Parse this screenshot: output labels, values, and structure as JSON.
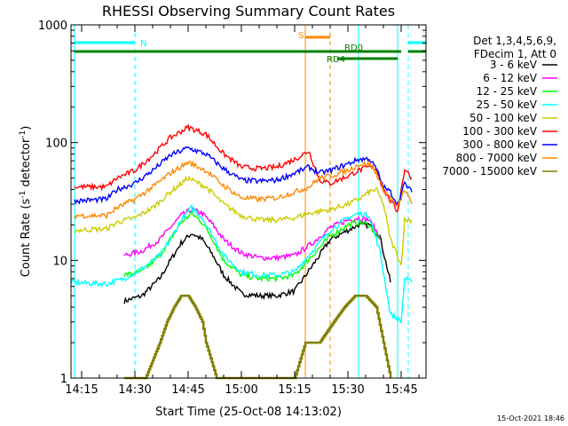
{
  "chart_data": {
    "type": "line",
    "title": "RHESSI Observing Summary Count Rates",
    "xlabel": "Start Time (25-Oct-08 14:13:02)",
    "ylabel": "Count Rate (s⁻¹ detector⁻¹)",
    "ylabel_parts": [
      "Count Rate (s",
      "-1",
      " detector",
      "-1",
      ")"
    ],
    "y_scale": "log",
    "ylim": [
      1,
      1000
    ],
    "xlim": [
      "14:12",
      "15:52"
    ],
    "x_ticks": [
      "14:15",
      "14:30",
      "14:45",
      "15:00",
      "15:15",
      "15:30",
      "15:45"
    ],
    "y_ticks": [
      {
        "value": 1,
        "label": "1"
      },
      {
        "value": 10,
        "label": "10"
      },
      {
        "value": 100,
        "label": "100"
      },
      {
        "value": 1000,
        "label": "1000"
      }
    ],
    "grid": false,
    "legend_placement": "top-right (outside plot)",
    "legend_header": [
      "Det 1,3,4,5,6,9,",
      "FDecim 1, Att 0"
    ],
    "timestamp": "15-Oct-2021 18:46",
    "series": [
      {
        "name": "3 - 6 keV",
        "color": "#000000",
        "x": [
          "14:27",
          "14:32",
          "14:37",
          "14:40",
          "14:43",
          "14:46",
          "14:49",
          "14:52",
          "14:55",
          "15:00",
          "15:05",
          "15:10",
          "15:15",
          "15:20",
          "15:25",
          "15:30",
          "15:33",
          "15:36",
          "15:39",
          "15:42"
        ],
        "values": [
          4.5,
          5,
          7,
          10,
          14,
          17,
          15,
          11,
          7.5,
          5.2,
          5,
          5,
          5.5,
          9,
          15,
          18,
          20,
          20,
          16,
          6.5
        ]
      },
      {
        "name": "6 - 12 keV",
        "color": "#ff00ff",
        "x": [
          "14:27",
          "14:32",
          "14:37",
          "14:40",
          "14:43",
          "14:46",
          "14:49",
          "14:52",
          "14:55",
          "15:00",
          "15:05",
          "15:10",
          "15:15",
          "15:20",
          "15:25",
          "15:30",
          "15:33",
          "15:36",
          "15:39"
        ],
        "values": [
          11,
          12,
          15,
          19,
          24,
          27,
          25,
          20,
          15,
          11.5,
          10.5,
          10.5,
          11,
          14,
          19,
          22,
          23,
          22,
          16
        ]
      },
      {
        "name": "12 - 25 keV",
        "color": "#00ff00",
        "x": [
          "14:27",
          "14:32",
          "14:37",
          "14:40",
          "14:43",
          "14:46",
          "14:49",
          "14:52",
          "14:55",
          "15:00",
          "15:05",
          "15:10",
          "15:15",
          "15:20",
          "15:25",
          "15:30",
          "15:33",
          "15:36",
          "15:39"
        ],
        "values": [
          7.5,
          8,
          11,
          15,
          21,
          25,
          21,
          15,
          10,
          7.5,
          7,
          7,
          7.5,
          11,
          16,
          20,
          21,
          20,
          15
        ]
      },
      {
        "name": "25 - 50 keV",
        "color": "#00ffff",
        "x": [
          "14:12",
          "14:22",
          "14:27",
          "14:32",
          "14:37",
          "14:40",
          "14:43",
          "14:46",
          "14:49",
          "14:52",
          "14:55",
          "15:00",
          "15:05",
          "15:10",
          "15:15",
          "15:20",
          "15:25",
          "15:30",
          "15:33",
          "15:36",
          "15:39",
          "15:42",
          "15:45",
          "15:46",
          "15:48"
        ],
        "values": [
          6.5,
          6.3,
          7,
          8.5,
          11,
          15,
          22,
          28,
          23,
          16,
          11,
          8,
          7.5,
          7.5,
          8,
          12,
          18,
          23,
          25,
          24,
          12,
          3.5,
          3,
          7,
          6.5
        ]
      },
      {
        "name": "50 - 100 keV",
        "color": "#cccc00",
        "x": [
          "14:13",
          "14:22",
          "14:25",
          "14:30",
          "14:35",
          "14:40",
          "14:45",
          "14:50",
          "14:55",
          "15:00",
          "15:05",
          "15:10",
          "15:15",
          "15:19",
          "15:25",
          "15:30",
          "15:33",
          "15:36",
          "15:38",
          "15:40",
          "15:42",
          "15:44",
          "15:45",
          "15:46",
          "15:48"
        ],
        "values": [
          18,
          18.5,
          21,
          23,
          28,
          38,
          50,
          42,
          30,
          24,
          22,
          22,
          23,
          25,
          27,
          30,
          33,
          38,
          40,
          30,
          15,
          11,
          9,
          22,
          22
        ]
      },
      {
        "name": "100 - 300 keV",
        "color": "#ff0000",
        "x": [
          "14:13",
          "14:22",
          "14:25",
          "14:30",
          "14:35",
          "14:40",
          "14:45",
          "14:50",
          "14:55",
          "15:00",
          "15:05",
          "15:10",
          "15:15",
          "15:19",
          "15:22",
          "15:25",
          "15:30",
          "15:33",
          "15:36",
          "15:38",
          "15:40",
          "15:42",
          "15:44",
          "15:46",
          "15:48"
        ],
        "values": [
          42,
          42,
          50,
          58,
          78,
          110,
          135,
          118,
          80,
          62,
          60,
          62,
          72,
          85,
          48,
          45,
          52,
          58,
          62,
          60,
          40,
          32,
          26,
          60,
          50
        ]
      },
      {
        "name": "300 - 800 keV",
        "color": "#0000ff",
        "x": [
          "14:13",
          "14:22",
          "14:25",
          "14:30",
          "14:35",
          "14:40",
          "14:45",
          "14:50",
          "14:55",
          "15:00",
          "15:05",
          "15:10",
          "15:15",
          "15:19",
          "15:22",
          "15:25",
          "15:30",
          "15:33",
          "15:36",
          "15:38",
          "15:40",
          "15:42",
          "15:44",
          "15:46",
          "15:48"
        ],
        "values": [
          32,
          33,
          40,
          45,
          58,
          78,
          90,
          80,
          60,
          48,
          47,
          48,
          55,
          62,
          55,
          58,
          66,
          72,
          73,
          60,
          42,
          38,
          30,
          45,
          38
        ]
      },
      {
        "name": "800 - 7000 keV",
        "color": "#ff8800",
        "x": [
          "14:13",
          "14:22",
          "14:25",
          "14:30",
          "14:35",
          "14:40",
          "14:45",
          "14:50",
          "14:55",
          "15:00",
          "15:05",
          "15:10",
          "15:15",
          "15:19",
          "15:22",
          "15:25",
          "15:30",
          "15:33",
          "15:36",
          "15:38",
          "15:40",
          "15:42",
          "15:44",
          "15:46",
          "15:48"
        ],
        "values": [
          24,
          24,
          28,
          33,
          42,
          55,
          68,
          58,
          43,
          34,
          33,
          34,
          38,
          42,
          50,
          52,
          58,
          65,
          66,
          55,
          40,
          34,
          28,
          40,
          30
        ]
      },
      {
        "name": "7000 - 15000 keV",
        "color": "#808000",
        "x": [
          "14:27",
          "14:33",
          "14:37",
          "14:39",
          "14:41",
          "14:43",
          "14:45",
          "14:47",
          "14:49",
          "14:50",
          "14:53",
          "14:58",
          "15:05",
          "15:10",
          "15:15",
          "15:18",
          "15:22",
          "15:26",
          "15:29",
          "15:32",
          "15:35",
          "15:38",
          "15:40",
          "15:42"
        ],
        "values": [
          1,
          1,
          2,
          3,
          4,
          5,
          5,
          4,
          3,
          2,
          1,
          1,
          1,
          1,
          1,
          2,
          2,
          3,
          4,
          5,
          5,
          4,
          2,
          1
        ]
      }
    ],
    "annotations": [
      {
        "label": "N",
        "color": "#00ffff",
        "kind": "bar",
        "segments": [
          [
            "14:13",
            "14:30"
          ],
          [
            "15:47",
            "15:52"
          ]
        ]
      },
      {
        "label": "S",
        "color": "#ff8800",
        "kind": "bar",
        "segments": [
          [
            "15:18",
            "15:25"
          ]
        ]
      },
      {
        "label": "RD0",
        "color": "#008000",
        "kind": "bar",
        "segments": [
          [
            "14:13",
            "15:45"
          ],
          [
            "15:47",
            "15:52"
          ]
        ]
      },
      {
        "label": "RD4",
        "color": "#008000",
        "kind": "bar",
        "segments": [
          [
            "15:27",
            "15:44"
          ]
        ]
      }
    ],
    "vertical_lines": [
      {
        "x": "14:13",
        "color": "#00ffff",
        "style": "solid"
      },
      {
        "x": "14:30",
        "color": "#00ffff",
        "style": "dashed"
      },
      {
        "x": "15:18",
        "color": "#ff8800",
        "style": "solid"
      },
      {
        "x": "15:25",
        "color": "#ff8800",
        "style": "dashed"
      },
      {
        "x": "15:33",
        "color": "#00ffff",
        "style": "solid"
      },
      {
        "x": "15:44",
        "color": "#00ffff",
        "style": "solid"
      },
      {
        "x": "15:47",
        "color": "#00ffff",
        "style": "dashed"
      }
    ]
  }
}
